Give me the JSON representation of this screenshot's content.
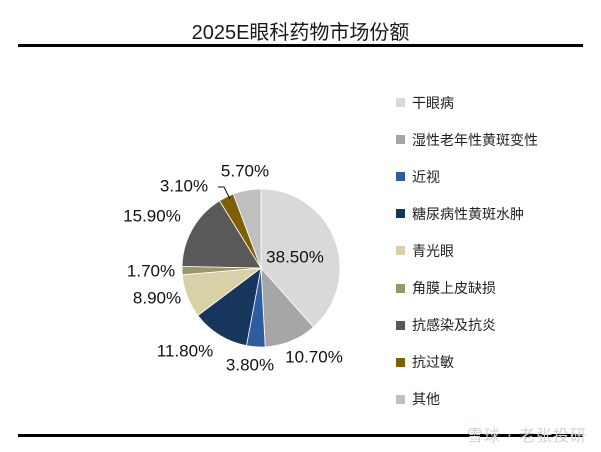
{
  "chart_data": {
    "type": "pie",
    "title": "2025E眼科药物市场份额",
    "slices": [
      {
        "label": "干眼病",
        "value": 38.5,
        "value_text": "38.50%",
        "color": "#d9d9d9"
      },
      {
        "label": "湿性老年性黄斑变性",
        "value": 10.7,
        "value_text": "10.70%",
        "color": "#a6a6a6"
      },
      {
        "label": "近视",
        "value": 3.8,
        "value_text": "3.80%",
        "color": "#2e5d9f"
      },
      {
        "label": "糖尿病性黄斑水肿",
        "value": 11.8,
        "value_text": "11.80%",
        "color": "#17365d"
      },
      {
        "label": "青光眼",
        "value": 8.9,
        "value_text": "8.90%",
        "color": "#d8d1a8"
      },
      {
        "label": "角膜上皮缺损",
        "value": 1.7,
        "value_text": "1.70%",
        "color": "#9b9568"
      },
      {
        "label": "抗感染及抗炎",
        "value": 15.9,
        "value_text": "15.90%",
        "color": "#595959"
      },
      {
        "label": "抗过敏",
        "value": 3.1,
        "value_text": "3.10%",
        "color": "#7f6000"
      },
      {
        "label": "其他",
        "value": 5.7,
        "value_text": "5.70%",
        "color": "#bfbfbf"
      }
    ],
    "legend_position": "right",
    "start": "12 o'clock",
    "direction": "clockwise"
  },
  "watermark": "雪球 · 老张投研"
}
